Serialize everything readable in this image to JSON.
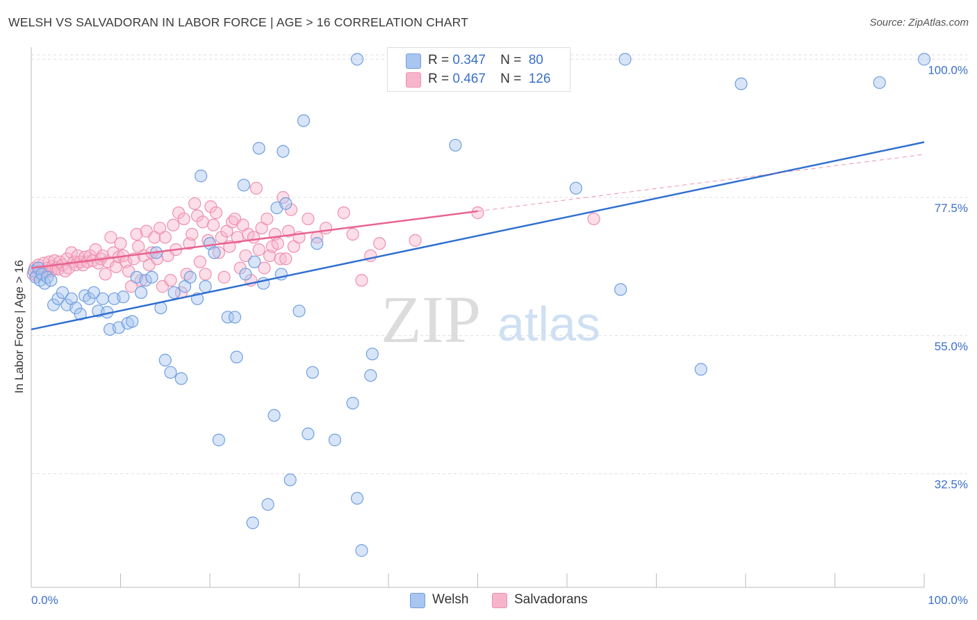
{
  "header": {
    "title": "WELSH VS SALVADORAN IN LABOR FORCE | AGE > 16 CORRELATION CHART",
    "source": "Source: ZipAtlas.com"
  },
  "watermark": {
    "zip": "ZIP",
    "atlas": "atlas"
  },
  "legend": {
    "welsh": {
      "r_label": "R =",
      "r_value": "0.347",
      "n_label": "N =",
      "n_value": "80"
    },
    "salvadoran": {
      "r_label": "R =",
      "r_value": "0.467",
      "n_label": "N =",
      "n_value": "126"
    }
  },
  "bottom_legend": {
    "welsh": "Welsh",
    "salvadoran": "Salvadorans"
  },
  "colors": {
    "welsh_fill": "#a9c6f0",
    "welsh_stroke": "#6f9ee0",
    "welsh_line": "#2f6fd0",
    "salv_fill": "#f6b5cb",
    "salv_stroke": "#ee8fb0",
    "salv_line": "#e8628f",
    "tick_label": "#3a6fc8",
    "grid": "#dddddd"
  },
  "chart_data": {
    "type": "scatter",
    "ylabel": "In Labor Force | Age > 16",
    "xlim": [
      0,
      100
    ],
    "ylim": [
      14,
      101.5
    ],
    "x_tick_labels": [
      {
        "value": 0,
        "label": "0.0%"
      },
      {
        "value": 100,
        "label": "100.0%"
      }
    ],
    "y_ticks": [
      {
        "value": 100.0,
        "label": "100.0%"
      },
      {
        "value": 77.5,
        "label": "77.5%"
      },
      {
        "value": 55.0,
        "label": "55.0%"
      },
      {
        "value": 32.5,
        "label": "32.5%"
      }
    ],
    "grid": true,
    "series": [
      {
        "name": "Welsh",
        "regression": {
          "x0": 0,
          "y0": 56.0,
          "x1": 100,
          "y1": 86.5,
          "dashed_from": null
        },
        "points": [
          [
            0.3,
            65.5
          ],
          [
            0.5,
            64.5
          ],
          [
            0.8,
            66
          ],
          [
            1,
            64
          ],
          [
            1.2,
            65
          ],
          [
            1.5,
            63.5
          ],
          [
            1.8,
            64.5
          ],
          [
            2.2,
            64
          ],
          [
            2.5,
            60
          ],
          [
            3,
            61
          ],
          [
            3.5,
            62
          ],
          [
            4,
            60
          ],
          [
            4.5,
            61
          ],
          [
            5,
            59.5
          ],
          [
            5.5,
            58.5
          ],
          [
            6,
            61.5
          ],
          [
            6.5,
            61
          ],
          [
            7,
            62
          ],
          [
            7.5,
            59
          ],
          [
            8,
            61
          ],
          [
            8.5,
            58.8
          ],
          [
            8.8,
            56
          ],
          [
            9.3,
            61
          ],
          [
            9.8,
            56.3
          ],
          [
            10.3,
            61.3
          ],
          [
            10.8,
            57
          ],
          [
            11.3,
            57.3
          ],
          [
            11.8,
            64.5
          ],
          [
            12.3,
            62
          ],
          [
            12.8,
            64
          ],
          [
            13.5,
            64.5
          ],
          [
            14,
            68.5
          ],
          [
            14.5,
            59.5
          ],
          [
            15,
            51
          ],
          [
            15.6,
            49
          ],
          [
            16,
            62
          ],
          [
            16.8,
            48
          ],
          [
            17.2,
            63
          ],
          [
            17.8,
            64.5
          ],
          [
            18.6,
            61
          ],
          [
            19,
            81
          ],
          [
            19.5,
            63
          ],
          [
            20,
            70
          ],
          [
            20.5,
            68.5
          ],
          [
            21,
            38
          ],
          [
            22,
            58
          ],
          [
            22.8,
            58
          ],
          [
            23,
            51.5
          ],
          [
            23.8,
            79.5
          ],
          [
            24,
            65
          ],
          [
            24.8,
            24.5
          ],
          [
            25,
            67
          ],
          [
            25.5,
            85.5
          ],
          [
            26,
            63.5
          ],
          [
            26.5,
            27.5
          ],
          [
            27.2,
            42
          ],
          [
            27.5,
            75.8
          ],
          [
            28,
            65
          ],
          [
            28.2,
            85
          ],
          [
            28.5,
            76.5
          ],
          [
            29,
            31.5
          ],
          [
            30,
            59
          ],
          [
            30.5,
            90
          ],
          [
            31,
            39
          ],
          [
            31.5,
            49
          ],
          [
            32,
            70
          ],
          [
            34,
            38
          ],
          [
            36,
            44
          ],
          [
            36.5,
            28.5
          ],
          [
            36.5,
            100
          ],
          [
            37,
            20
          ],
          [
            38,
            48.5
          ],
          [
            38.2,
            52
          ],
          [
            41,
            100
          ],
          [
            47.5,
            86
          ],
          [
            61,
            79
          ],
          [
            66.5,
            100
          ],
          [
            66,
            62.5
          ],
          [
            75,
            49.5
          ],
          [
            79.5,
            96
          ],
          [
            95,
            96.2
          ],
          [
            100,
            100
          ]
        ]
      },
      {
        "name": "Salvadorans",
        "regression": {
          "x0": 0,
          "y0": 66.0,
          "x1": 100,
          "y1": 84.5,
          "solid_until": 50
        },
        "points": [
          [
            0.2,
            65
          ],
          [
            0.4,
            66
          ],
          [
            0.6,
            64.8
          ],
          [
            0.8,
            66.5
          ],
          [
            1,
            65.5
          ],
          [
            1.2,
            65
          ],
          [
            1.4,
            66.8
          ],
          [
            1.6,
            65.3
          ],
          [
            1.8,
            66
          ],
          [
            2,
            67
          ],
          [
            2.2,
            65.5
          ],
          [
            2.4,
            66.3
          ],
          [
            2.6,
            67.2
          ],
          [
            2.8,
            66
          ],
          [
            3,
            65.8
          ],
          [
            3.2,
            67
          ],
          [
            3.5,
            66.5
          ],
          [
            3.8,
            65.5
          ],
          [
            4,
            67.5
          ],
          [
            4.2,
            66
          ],
          [
            4.5,
            68.5
          ],
          [
            4.8,
            67
          ],
          [
            5,
            66.5
          ],
          [
            5.2,
            68
          ],
          [
            5.5,
            67
          ],
          [
            5.8,
            66.5
          ],
          [
            6,
            67.8
          ],
          [
            6.3,
            67
          ],
          [
            6.6,
            68
          ],
          [
            6.9,
            67.2
          ],
          [
            7.2,
            69
          ],
          [
            7.5,
            66.8
          ],
          [
            7.8,
            67.5
          ],
          [
            8,
            68
          ],
          [
            8.3,
            65
          ],
          [
            8.6,
            67
          ],
          [
            8.9,
            71
          ],
          [
            9.2,
            68.5
          ],
          [
            9.5,
            66.2
          ],
          [
            9.8,
            67.8
          ],
          [
            10,
            70
          ],
          [
            10.3,
            68
          ],
          [
            10.6,
            67
          ],
          [
            10.9,
            65.5
          ],
          [
            11.2,
            63
          ],
          [
            11.5,
            67.5
          ],
          [
            11.8,
            71.5
          ],
          [
            12,
            69.5
          ],
          [
            12.3,
            64
          ],
          [
            12.6,
            68
          ],
          [
            12.9,
            72
          ],
          [
            13.2,
            66.5
          ],
          [
            13.5,
            68.5
          ],
          [
            13.8,
            71
          ],
          [
            14.1,
            67.5
          ],
          [
            14.4,
            72.5
          ],
          [
            14.7,
            63
          ],
          [
            15,
            71
          ],
          [
            15.3,
            68
          ],
          [
            15.6,
            64
          ],
          [
            15.9,
            73
          ],
          [
            16.2,
            69
          ],
          [
            16.5,
            75
          ],
          [
            16.8,
            62
          ],
          [
            17.1,
            74
          ],
          [
            17.4,
            65
          ],
          [
            17.7,
            70
          ],
          [
            18,
            71.5
          ],
          [
            18.3,
            76.5
          ],
          [
            18.6,
            74.5
          ],
          [
            18.9,
            67
          ],
          [
            19.2,
            73.5
          ],
          [
            19.5,
            65
          ],
          [
            19.8,
            70.5
          ],
          [
            20.1,
            76
          ],
          [
            20.4,
            73
          ],
          [
            20.7,
            75
          ],
          [
            21,
            68.5
          ],
          [
            21.3,
            71
          ],
          [
            21.6,
            64.5
          ],
          [
            21.9,
            72
          ],
          [
            22.2,
            69.5
          ],
          [
            22.5,
            73.5
          ],
          [
            22.8,
            74
          ],
          [
            23.1,
            71
          ],
          [
            23.4,
            66
          ],
          [
            23.7,
            73
          ],
          [
            24,
            68
          ],
          [
            24.3,
            71.5
          ],
          [
            24.6,
            64
          ],
          [
            24.9,
            71
          ],
          [
            25.2,
            79
          ],
          [
            25.5,
            69
          ],
          [
            25.8,
            72.5
          ],
          [
            26.1,
            66
          ],
          [
            26.4,
            74
          ],
          [
            26.7,
            68
          ],
          [
            27,
            69.5
          ],
          [
            27.3,
            71.5
          ],
          [
            27.6,
            70
          ],
          [
            27.9,
            67.5
          ],
          [
            28.2,
            77.5
          ],
          [
            28.5,
            67.5
          ],
          [
            28.8,
            72
          ],
          [
            29.1,
            75.5
          ],
          [
            29.4,
            69.5
          ],
          [
            30,
            71
          ],
          [
            31,
            74
          ],
          [
            32,
            71
          ],
          [
            33,
            72.5
          ],
          [
            35,
            75
          ],
          [
            36,
            71.5
          ],
          [
            37,
            64
          ],
          [
            38,
            68
          ],
          [
            39,
            70
          ],
          [
            43,
            70.5
          ],
          [
            50,
            75
          ],
          [
            63,
            74
          ]
        ]
      }
    ]
  }
}
